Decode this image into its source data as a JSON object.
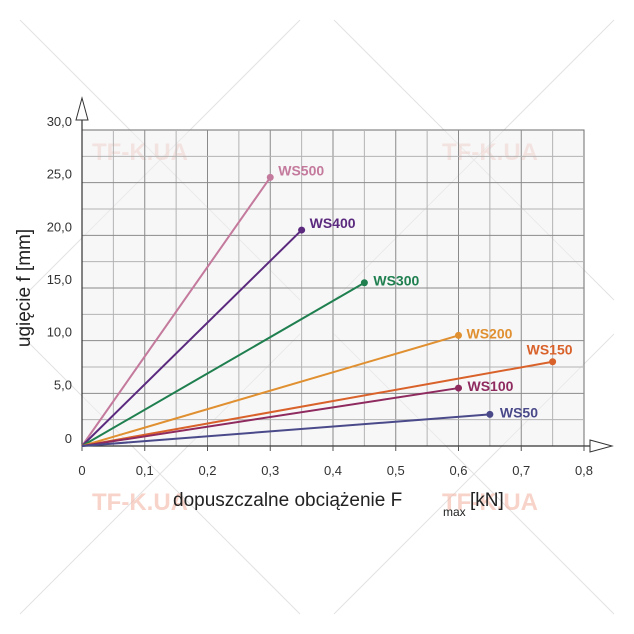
{
  "chart_data": {
    "type": "line",
    "xlabel": "dopuszczalne obciążenie F",
    "xlabel_subscript": "max",
    "xlabel_unit": "[kN]",
    "ylabel": "ugięcie f [mm]",
    "xlim": [
      0,
      0.8
    ],
    "ylim": [
      0,
      30
    ],
    "x_ticks": [
      "0",
      "0,1",
      "0,2",
      "0,3",
      "0,4",
      "0,5",
      "0,6",
      "0,7",
      "0,8"
    ],
    "y_ticks": [
      "0",
      "5,0",
      "10,0",
      "15,0",
      "20,0",
      "25,0",
      "30,0"
    ],
    "grid": true,
    "watermark_text": "TF-K.UA",
    "series": [
      {
        "name": "WS500",
        "x": [
          0,
          0.3
        ],
        "y": [
          0,
          25.5
        ],
        "color": "#c47a9c"
      },
      {
        "name": "WS400",
        "x": [
          0,
          0.35
        ],
        "y": [
          0,
          20.5
        ],
        "color": "#5b2a7e"
      },
      {
        "name": "WS300",
        "x": [
          0,
          0.45
        ],
        "y": [
          0,
          15.5
        ],
        "color": "#1f7f4f"
      },
      {
        "name": "WS200",
        "x": [
          0,
          0.6
        ],
        "y": [
          0,
          10.5
        ],
        "color": "#e09030"
      },
      {
        "name": "WS150",
        "x": [
          0,
          0.75
        ],
        "y": [
          0,
          8.0
        ],
        "color": "#d9622b"
      },
      {
        "name": "WS100",
        "x": [
          0,
          0.6
        ],
        "y": [
          0,
          5.5
        ],
        "color": "#8e2a5e"
      },
      {
        "name": "WS50",
        "x": [
          0,
          0.65
        ],
        "y": [
          0,
          3.0
        ],
        "color": "#4a4a8a"
      }
    ]
  }
}
